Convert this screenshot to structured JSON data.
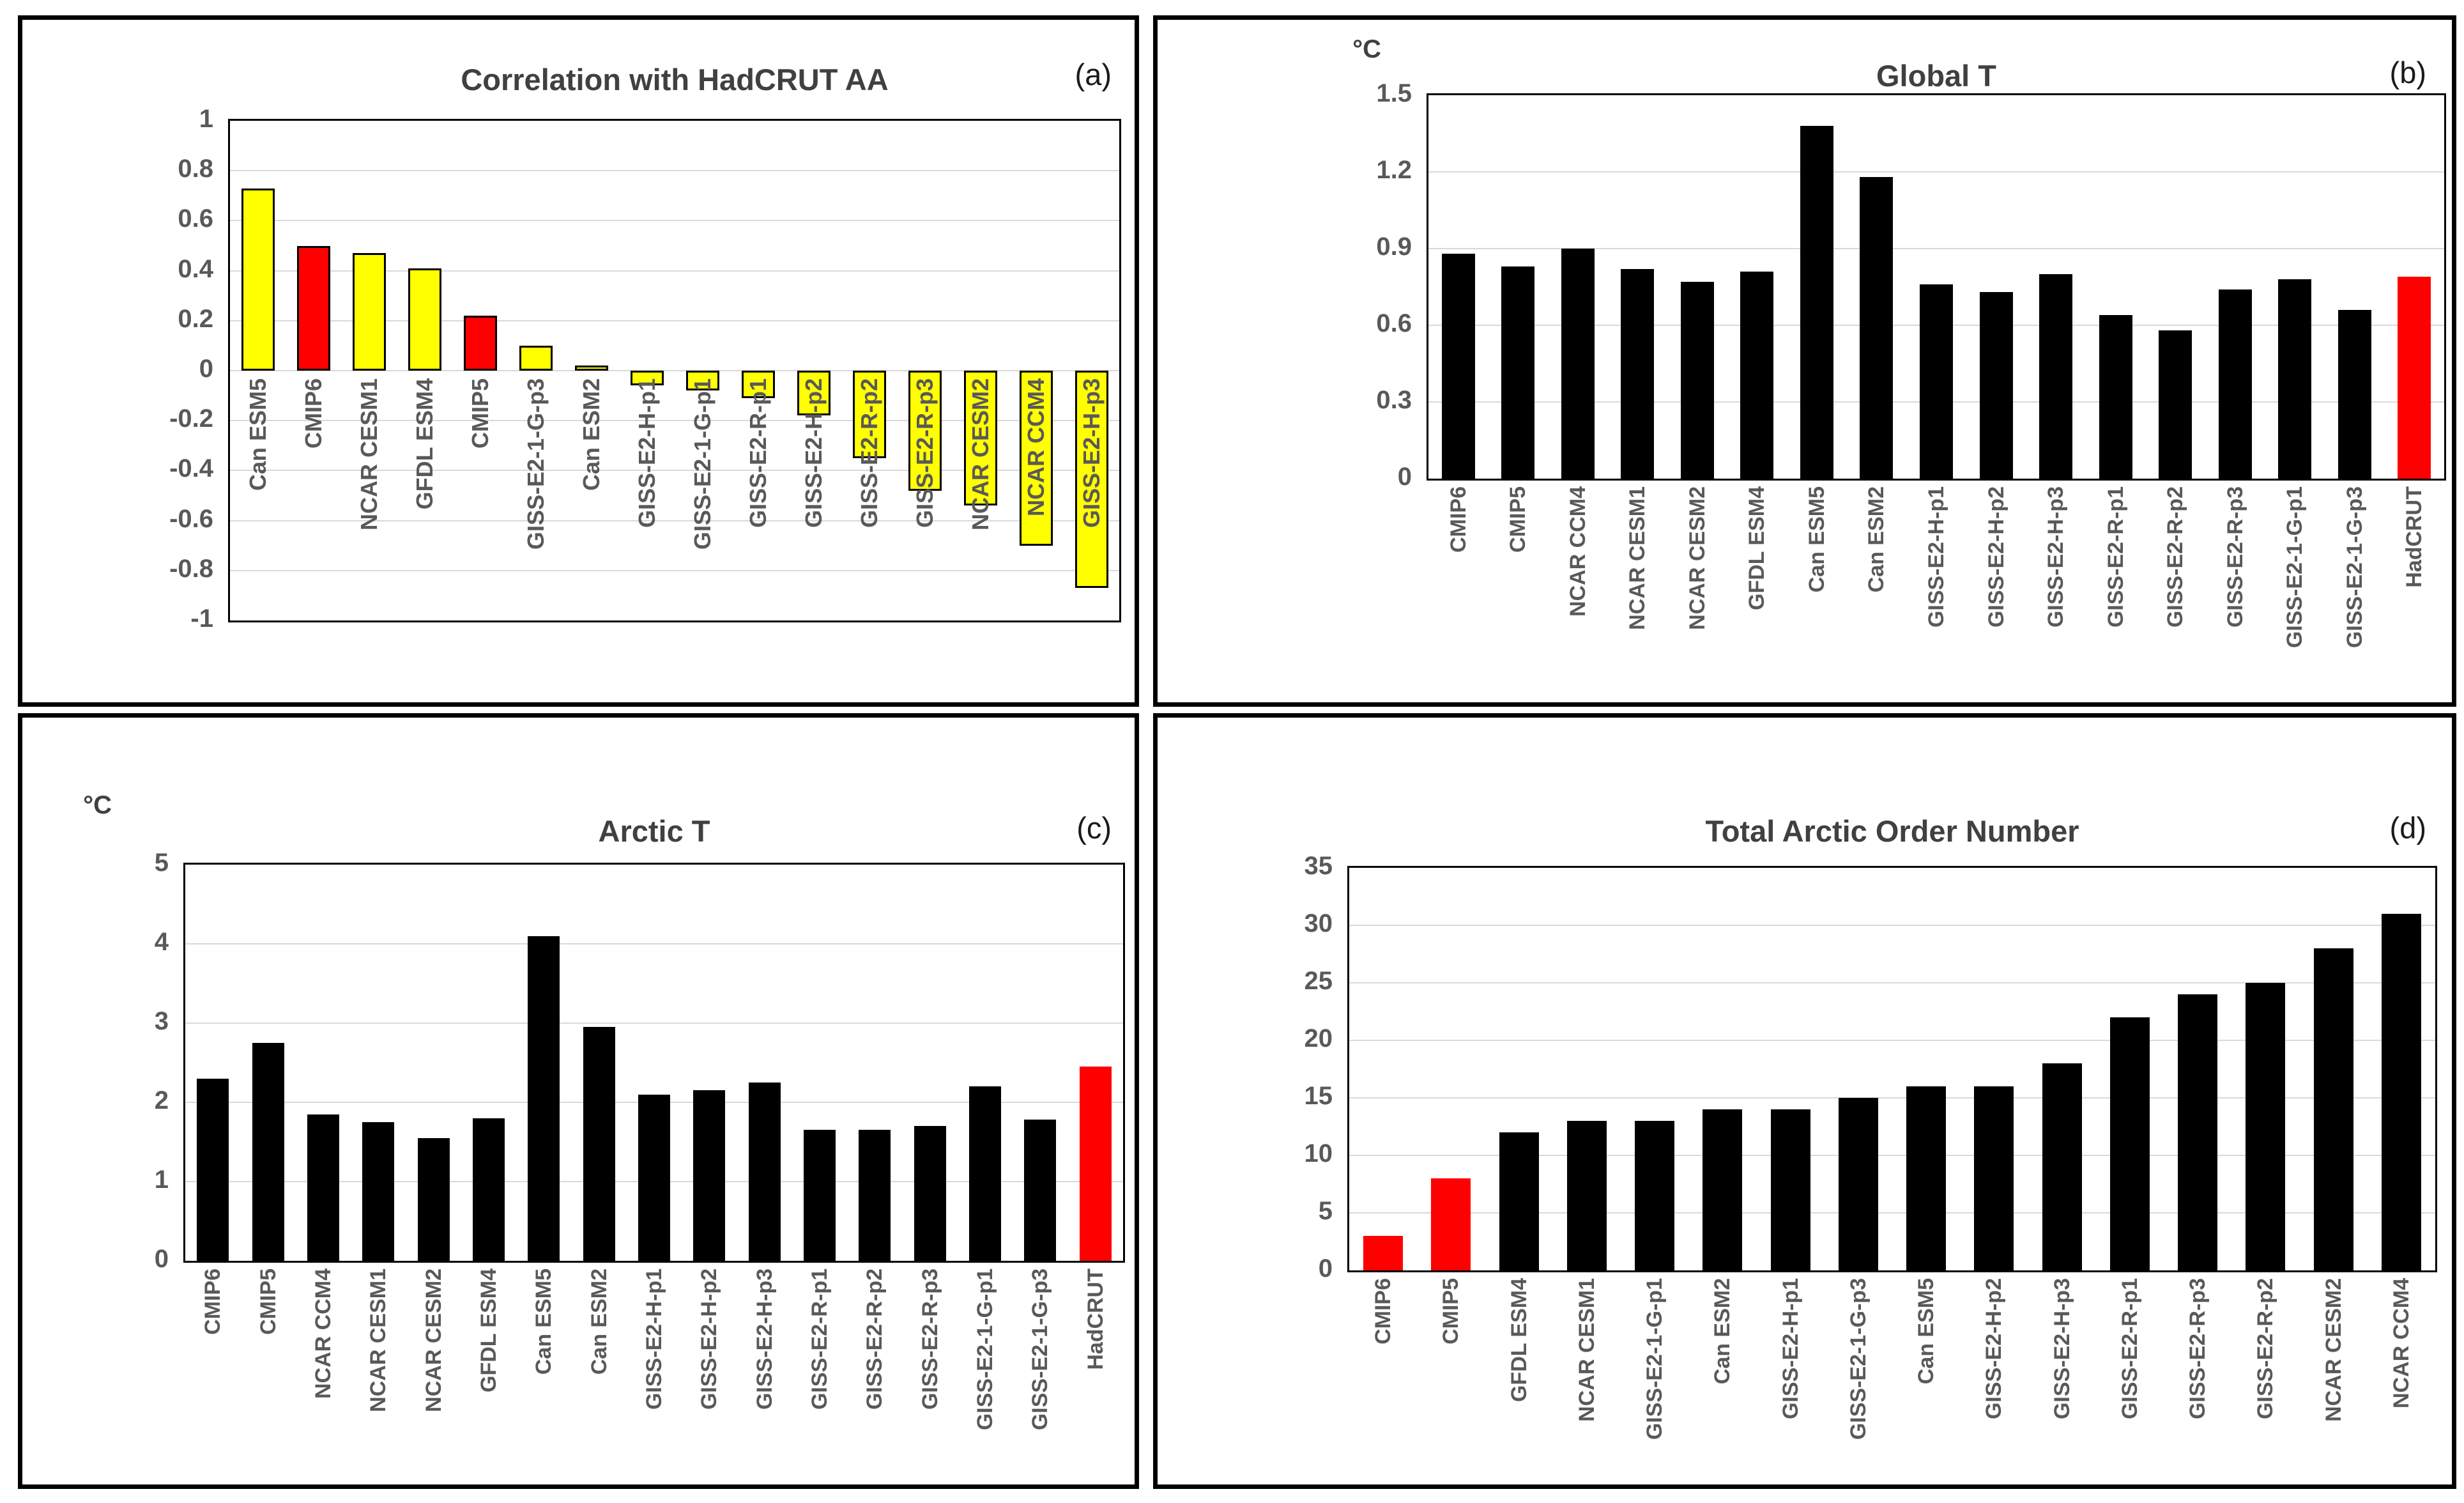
{
  "page": {
    "background": "#FFFFFF"
  },
  "colors": {
    "bar_default_dark": "#000000",
    "bar_default_yellow": "#FFFF00",
    "bar_highlight_red": "#FF0000",
    "gridline": "#D9D9D9",
    "axis_text": "#595959",
    "title_text": "#404040"
  },
  "chart_data": [
    {
      "type": "bar",
      "panel_tag": "(a)",
      "title": "Correlation with HadCRUT AA",
      "unit_label": "",
      "xlabel": "",
      "ylabel": "",
      "ylim": [
        -1,
        1
      ],
      "yticks": [
        "1",
        "0.8",
        "0.6",
        "0.4",
        "0.2",
        "0",
        "-0.2",
        "-0.4",
        "-0.6",
        "-0.8",
        "-1"
      ],
      "grid": true,
      "legend": "none",
      "bar_outline_color": "#000000",
      "categories": [
        "Can ESM5",
        "CMIP6",
        "NCAR CESM1",
        "GFDL ESM4",
        "CMIP5",
        "GISS-E2-1-G-p3",
        "Can ESM2",
        "GISS-E2-H-p1",
        "GISS-E2-1-G-p1",
        "GISS-E2-R-p1",
        "GISS-E2-H-p2",
        "GISS-E2-R-p2",
        "GISS-E2-R-p3",
        "NCAR CESM2",
        "NCAR CCM4",
        "GISS-E2-H-p3"
      ],
      "values": [
        0.73,
        0.5,
        0.47,
        0.41,
        0.22,
        0.1,
        0.02,
        -0.06,
        -0.08,
        -0.11,
        -0.18,
        -0.35,
        -0.48,
        -0.54,
        -0.7,
        -0.87
      ],
      "bar_colors": [
        "#FFFF00",
        "#FF0000",
        "#FFFF00",
        "#FFFF00",
        "#FF0000",
        "#FFFF00",
        "#FFFF00",
        "#FFFF00",
        "#FFFF00",
        "#FFFF00",
        "#FFFF00",
        "#FFFF00",
        "#FFFF00",
        "#FFFF00",
        "#FFFF00",
        "#FFFF00"
      ]
    },
    {
      "type": "bar",
      "panel_tag": "(b)",
      "title": "Global T",
      "unit_label": "°C",
      "xlabel": "",
      "ylabel": "",
      "ylim": [
        0,
        1.5
      ],
      "yticks": [
        "1.5",
        "1.2",
        "0.9",
        "0.6",
        "0.3",
        "0"
      ],
      "grid": true,
      "legend": "none",
      "bar_outline_color": "",
      "categories": [
        "CMIP6",
        "CMIP5",
        "NCAR CCM4",
        "NCAR CESM1",
        "NCAR CESM2",
        "GFDL ESM4",
        "Can ESM5",
        "Can ESM2",
        "GISS-E2-H-p1",
        "GISS-E2-H-p2",
        "GISS-E2-H-p3",
        "GISS-E2-R-p1",
        "GISS-E2-R-p2",
        "GISS-E2-R-p3",
        "GISS-E2-1-G-p1",
        "GISS-E2-1-G-p3",
        "HadCRUT"
      ],
      "values": [
        0.88,
        0.83,
        0.9,
        0.82,
        0.77,
        0.81,
        1.38,
        1.18,
        0.76,
        0.73,
        0.8,
        0.64,
        0.58,
        0.74,
        0.78,
        0.66,
        0.79
      ],
      "bar_colors": [
        "#000000",
        "#000000",
        "#000000",
        "#000000",
        "#000000",
        "#000000",
        "#000000",
        "#000000",
        "#000000",
        "#000000",
        "#000000",
        "#000000",
        "#000000",
        "#000000",
        "#000000",
        "#000000",
        "#FF0000"
      ]
    },
    {
      "type": "bar",
      "panel_tag": "(c)",
      "title": "Arctic T",
      "unit_label": "°C",
      "xlabel": "",
      "ylabel": "",
      "ylim": [
        0,
        5
      ],
      "yticks": [
        "5",
        "4",
        "3",
        "2",
        "1",
        "0"
      ],
      "grid": true,
      "legend": "none",
      "bar_outline_color": "",
      "categories": [
        "CMIP6",
        "CMIP5",
        "NCAR CCM4",
        "NCAR CESM1",
        "NCAR CESM2",
        "GFDL ESM4",
        "Can ESM5",
        "Can ESM2",
        "GISS-E2-H-p1",
        "GISS-E2-H-p2",
        "GISS-E2-H-p3",
        "GISS-E2-R-p1",
        "GISS-E2-R-p2",
        "GISS-E2-R-p3",
        "GISS-E2-1-G-p1",
        "GISS-E2-1-G-p3",
        "HadCRUT"
      ],
      "values": [
        2.3,
        2.75,
        1.85,
        1.75,
        1.55,
        1.8,
        4.1,
        2.95,
        2.1,
        2.15,
        2.25,
        1.65,
        1.65,
        1.7,
        2.2,
        1.78,
        2.45
      ],
      "bar_colors": [
        "#000000",
        "#000000",
        "#000000",
        "#000000",
        "#000000",
        "#000000",
        "#000000",
        "#000000",
        "#000000",
        "#000000",
        "#000000",
        "#000000",
        "#000000",
        "#000000",
        "#000000",
        "#000000",
        "#FF0000"
      ]
    },
    {
      "type": "bar",
      "panel_tag": "(d)",
      "title": "Total Arctic Order Number",
      "unit_label": "",
      "xlabel": "",
      "ylabel": "",
      "ylim": [
        0,
        35
      ],
      "yticks": [
        "35",
        "30",
        "25",
        "20",
        "15",
        "10",
        "5",
        "0"
      ],
      "grid": true,
      "legend": "none",
      "bar_outline_color": "",
      "categories": [
        "CMIP6",
        "CMIP5",
        "GFDL ESM4",
        "NCAR CESM1",
        "GISS-E2-1-G-p1",
        "Can ESM2",
        "GISS-E2-H-p1",
        "GISS-E2-1-G-p3",
        "Can ESM5",
        "GISS-E2-H-p2",
        "GISS-E2-H-p3",
        "GISS-E2-R-p1",
        "GISS-E2-R-p3",
        "GISS-E2-R-p2",
        "NCAR CESM2",
        "NCAR CCM4"
      ],
      "values": [
        3,
        8,
        12,
        13,
        13,
        14,
        14,
        15,
        16,
        16,
        18,
        22,
        24,
        25,
        28,
        31
      ],
      "bar_colors": [
        "#FF0000",
        "#FF0000",
        "#000000",
        "#000000",
        "#000000",
        "#000000",
        "#000000",
        "#000000",
        "#000000",
        "#000000",
        "#000000",
        "#000000",
        "#000000",
        "#000000",
        "#000000",
        "#000000"
      ]
    }
  ]
}
